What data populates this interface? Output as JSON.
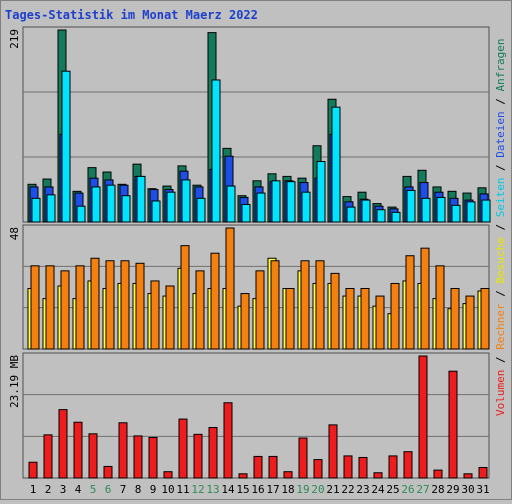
{
  "chart_data": {
    "type": "bar",
    "title": "Tages-Statistik im Monat Maerz 2022",
    "categories": [
      "1",
      "2",
      "3",
      "4",
      "5",
      "6",
      "7",
      "8",
      "9",
      "10",
      "11",
      "12",
      "13",
      "14",
      "15",
      "16",
      "17",
      "18",
      "19",
      "20",
      "21",
      "22",
      "23",
      "24",
      "25",
      "26",
      "27",
      "28",
      "29",
      "30",
      "31"
    ],
    "weekend_days": [
      "5",
      "6",
      "12",
      "13",
      "19",
      "20",
      "26",
      "27"
    ],
    "panels": [
      {
        "id": "top",
        "ymax_label": "219",
        "ylim": [
          0,
          219
        ],
        "series": [
          {
            "name": "Anfragen",
            "color": "#137b5c",
            "values": [
              43,
              49,
              219,
              35,
              62,
              57,
              43,
              66,
              38,
              41,
              64,
              42,
              216,
              84,
              30,
              47,
              55,
              52,
              50,
              87,
              140,
              29,
              34,
              21,
              17,
              52,
              59,
              40,
              35,
              33,
              39
            ]
          },
          {
            "name": "Dateien",
            "color": "#1e4ee8",
            "values": [
              40,
              40,
              100,
              33,
              50,
              48,
              42,
              52,
              37,
              37,
              58,
              40,
              60,
              75,
              28,
              40,
              46,
              47,
              45,
              50,
              100,
              23,
              26,
              18,
              15,
              40,
              45,
              34,
              27,
              25,
              32
            ]
          },
          {
            "name": "Seiten",
            "color": "#00e5ff",
            "values": [
              27,
              31,
              172,
              18,
              40,
              42,
              30,
              52,
              24,
              34,
              48,
              27,
              162,
              41,
              20,
              33,
              47,
              46,
              34,
              69,
              131,
              17,
              25,
              14,
              11,
              36,
              27,
              28,
              19,
              23,
              25
            ]
          }
        ]
      },
      {
        "id": "mid",
        "ymax_label": "48",
        "ylim": [
          0,
          48
        ],
        "series": [
          {
            "name": "Besuche",
            "color": "#ffff40",
            "values": [
              24,
              20,
              25,
              20,
              27,
              24,
              26,
              26,
              22,
              21,
              32,
              22,
              24,
              24,
              17,
              20,
              36,
              24,
              31,
              26,
              26,
              21,
              21,
              17,
              14,
              27,
              26,
              20,
              16,
              18,
              23
            ]
          },
          {
            "name": "Rechner",
            "color": "#f48010",
            "values": [
              33,
              33,
              31,
              33,
              36,
              35,
              35,
              34,
              27,
              25,
              41,
              31,
              38,
              48,
              22,
              31,
              35,
              24,
              35,
              35,
              30,
              24,
              24,
              21,
              26,
              37,
              40,
              33,
              24,
              21,
              24
            ]
          }
        ]
      },
      {
        "id": "bot",
        "ymax_label": "23.19 MB",
        "ylim": [
          0,
          23.19
        ],
        "series": [
          {
            "name": "Volumen",
            "color": "#ee1c1c",
            "values": [
              3.0,
              8.2,
              13.0,
              10.6,
              8.4,
              2.2,
              10.5,
              8.0,
              7.7,
              1.2,
              11.2,
              8.3,
              9.6,
              14.3,
              0.8,
              4.1,
              4.1,
              1.2,
              7.6,
              3.5,
              10.1,
              4.2,
              3.9,
              1.0,
              4.2,
              5.0,
              23.19,
              1.5,
              20.3,
              0.8,
              2.0
            ]
          }
        ]
      }
    ],
    "legend_right": [
      "Volumen",
      "/",
      "Rechner",
      "/",
      "Besuche",
      "/",
      "Seiten",
      "/",
      "Dateien",
      "/",
      "Anfragen"
    ],
    "legend_colors": [
      "#ee1c1c",
      "#000000",
      "#f48010",
      "#000000",
      "#e6e600",
      "#000000",
      "#00c8e8",
      "#000000",
      "#1e4ee8",
      "#000000",
      "#137b5c"
    ],
    "weekend_label_color": "#2e8b57",
    "grid": true
  }
}
